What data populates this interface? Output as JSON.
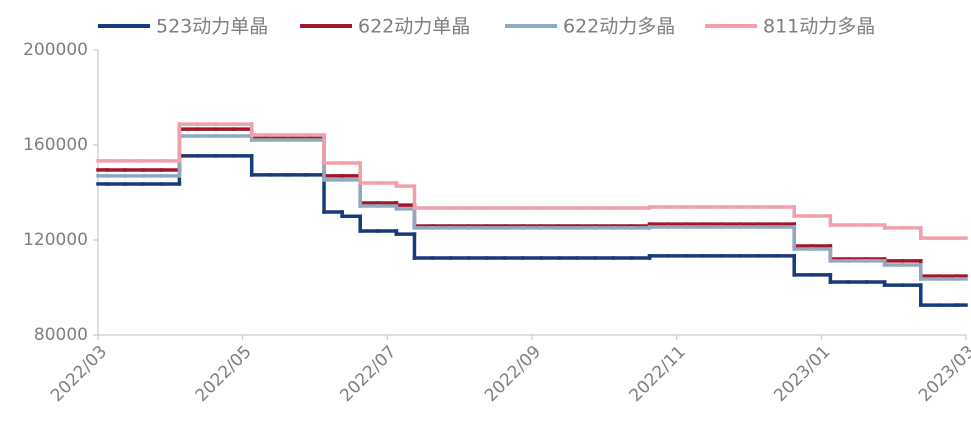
{
  "chart_data": {
    "type": "line",
    "step": true,
    "x": [
      "2022/03",
      null,
      null,
      null,
      null,
      null,
      null,
      null,
      "2022/05",
      null,
      null,
      null,
      null,
      null,
      null,
      null,
      "2022/07",
      null,
      null,
      null,
      null,
      null,
      null,
      null,
      "2022/09",
      null,
      null,
      null,
      null,
      null,
      null,
      null,
      "2022/11",
      null,
      null,
      null,
      null,
      null,
      null,
      null,
      "2023/01",
      null,
      null,
      null,
      null,
      null,
      null,
      null,
      "2023/03"
    ],
    "ylim": [
      80000,
      200000
    ],
    "yticks": [
      80000,
      120000,
      160000,
      200000
    ],
    "legend": "top",
    "series": [
      {
        "name": "523动力单晶",
        "color": "#173a7a",
        "values": [
          143600,
          143600,
          143600,
          143600,
          143600,
          155400,
          155400,
          155400,
          155400,
          147400,
          147400,
          147400,
          147400,
          131800,
          130000,
          123800,
          123800,
          122500,
          112400,
          112400,
          112400,
          112400,
          112400,
          112400,
          112400,
          112400,
          112400,
          112400,
          112400,
          112400,
          112400,
          113300,
          113300,
          113300,
          113300,
          113300,
          113300,
          113300,
          113300,
          105300,
          105300,
          102300,
          102300,
          102300,
          101000,
          101000,
          92600,
          92600,
          92600
        ]
      },
      {
        "name": "622动力单晶",
        "color": "#a3162b",
        "values": [
          149500,
          149500,
          149500,
          149500,
          149500,
          166700,
          166700,
          166700,
          166700,
          163400,
          163400,
          163400,
          163400,
          147000,
          147000,
          135600,
          135600,
          134700,
          125900,
          125900,
          125900,
          125900,
          125900,
          125900,
          125900,
          125900,
          125900,
          125900,
          125900,
          125900,
          125900,
          126700,
          126700,
          126700,
          126700,
          126700,
          126700,
          126700,
          126700,
          117500,
          117500,
          112000,
          112000,
          112000,
          111200,
          111200,
          104800,
          104800,
          104800
        ]
      },
      {
        "name": "622动力多晶",
        "color": "#8fa9c0",
        "values": [
          147000,
          147000,
          147000,
          147000,
          147000,
          163800,
          163800,
          163800,
          163800,
          162100,
          162100,
          162100,
          162100,
          145300,
          145300,
          134300,
          134300,
          133100,
          125100,
          125100,
          125100,
          125100,
          125100,
          125100,
          125100,
          125100,
          125100,
          125100,
          125100,
          125100,
          125100,
          125500,
          125500,
          125500,
          125500,
          125500,
          125500,
          125500,
          125500,
          116200,
          116200,
          111200,
          111200,
          111200,
          109500,
          109500,
          103600,
          103600,
          103600
        ]
      },
      {
        "name": "811动力多晶",
        "color": "#f0a0aa",
        "values": [
          153300,
          153300,
          153300,
          153300,
          153300,
          168800,
          168800,
          168800,
          168800,
          164200,
          164200,
          164200,
          164200,
          152400,
          152400,
          144000,
          144000,
          142700,
          133500,
          133500,
          133500,
          133500,
          133500,
          133500,
          133500,
          133500,
          133500,
          133500,
          133500,
          133500,
          133500,
          133900,
          133900,
          133900,
          133900,
          133900,
          133900,
          133900,
          133900,
          130100,
          130100,
          126300,
          126300,
          126300,
          125100,
          125100,
          120800,
          120800,
          120800
        ]
      }
    ]
  }
}
